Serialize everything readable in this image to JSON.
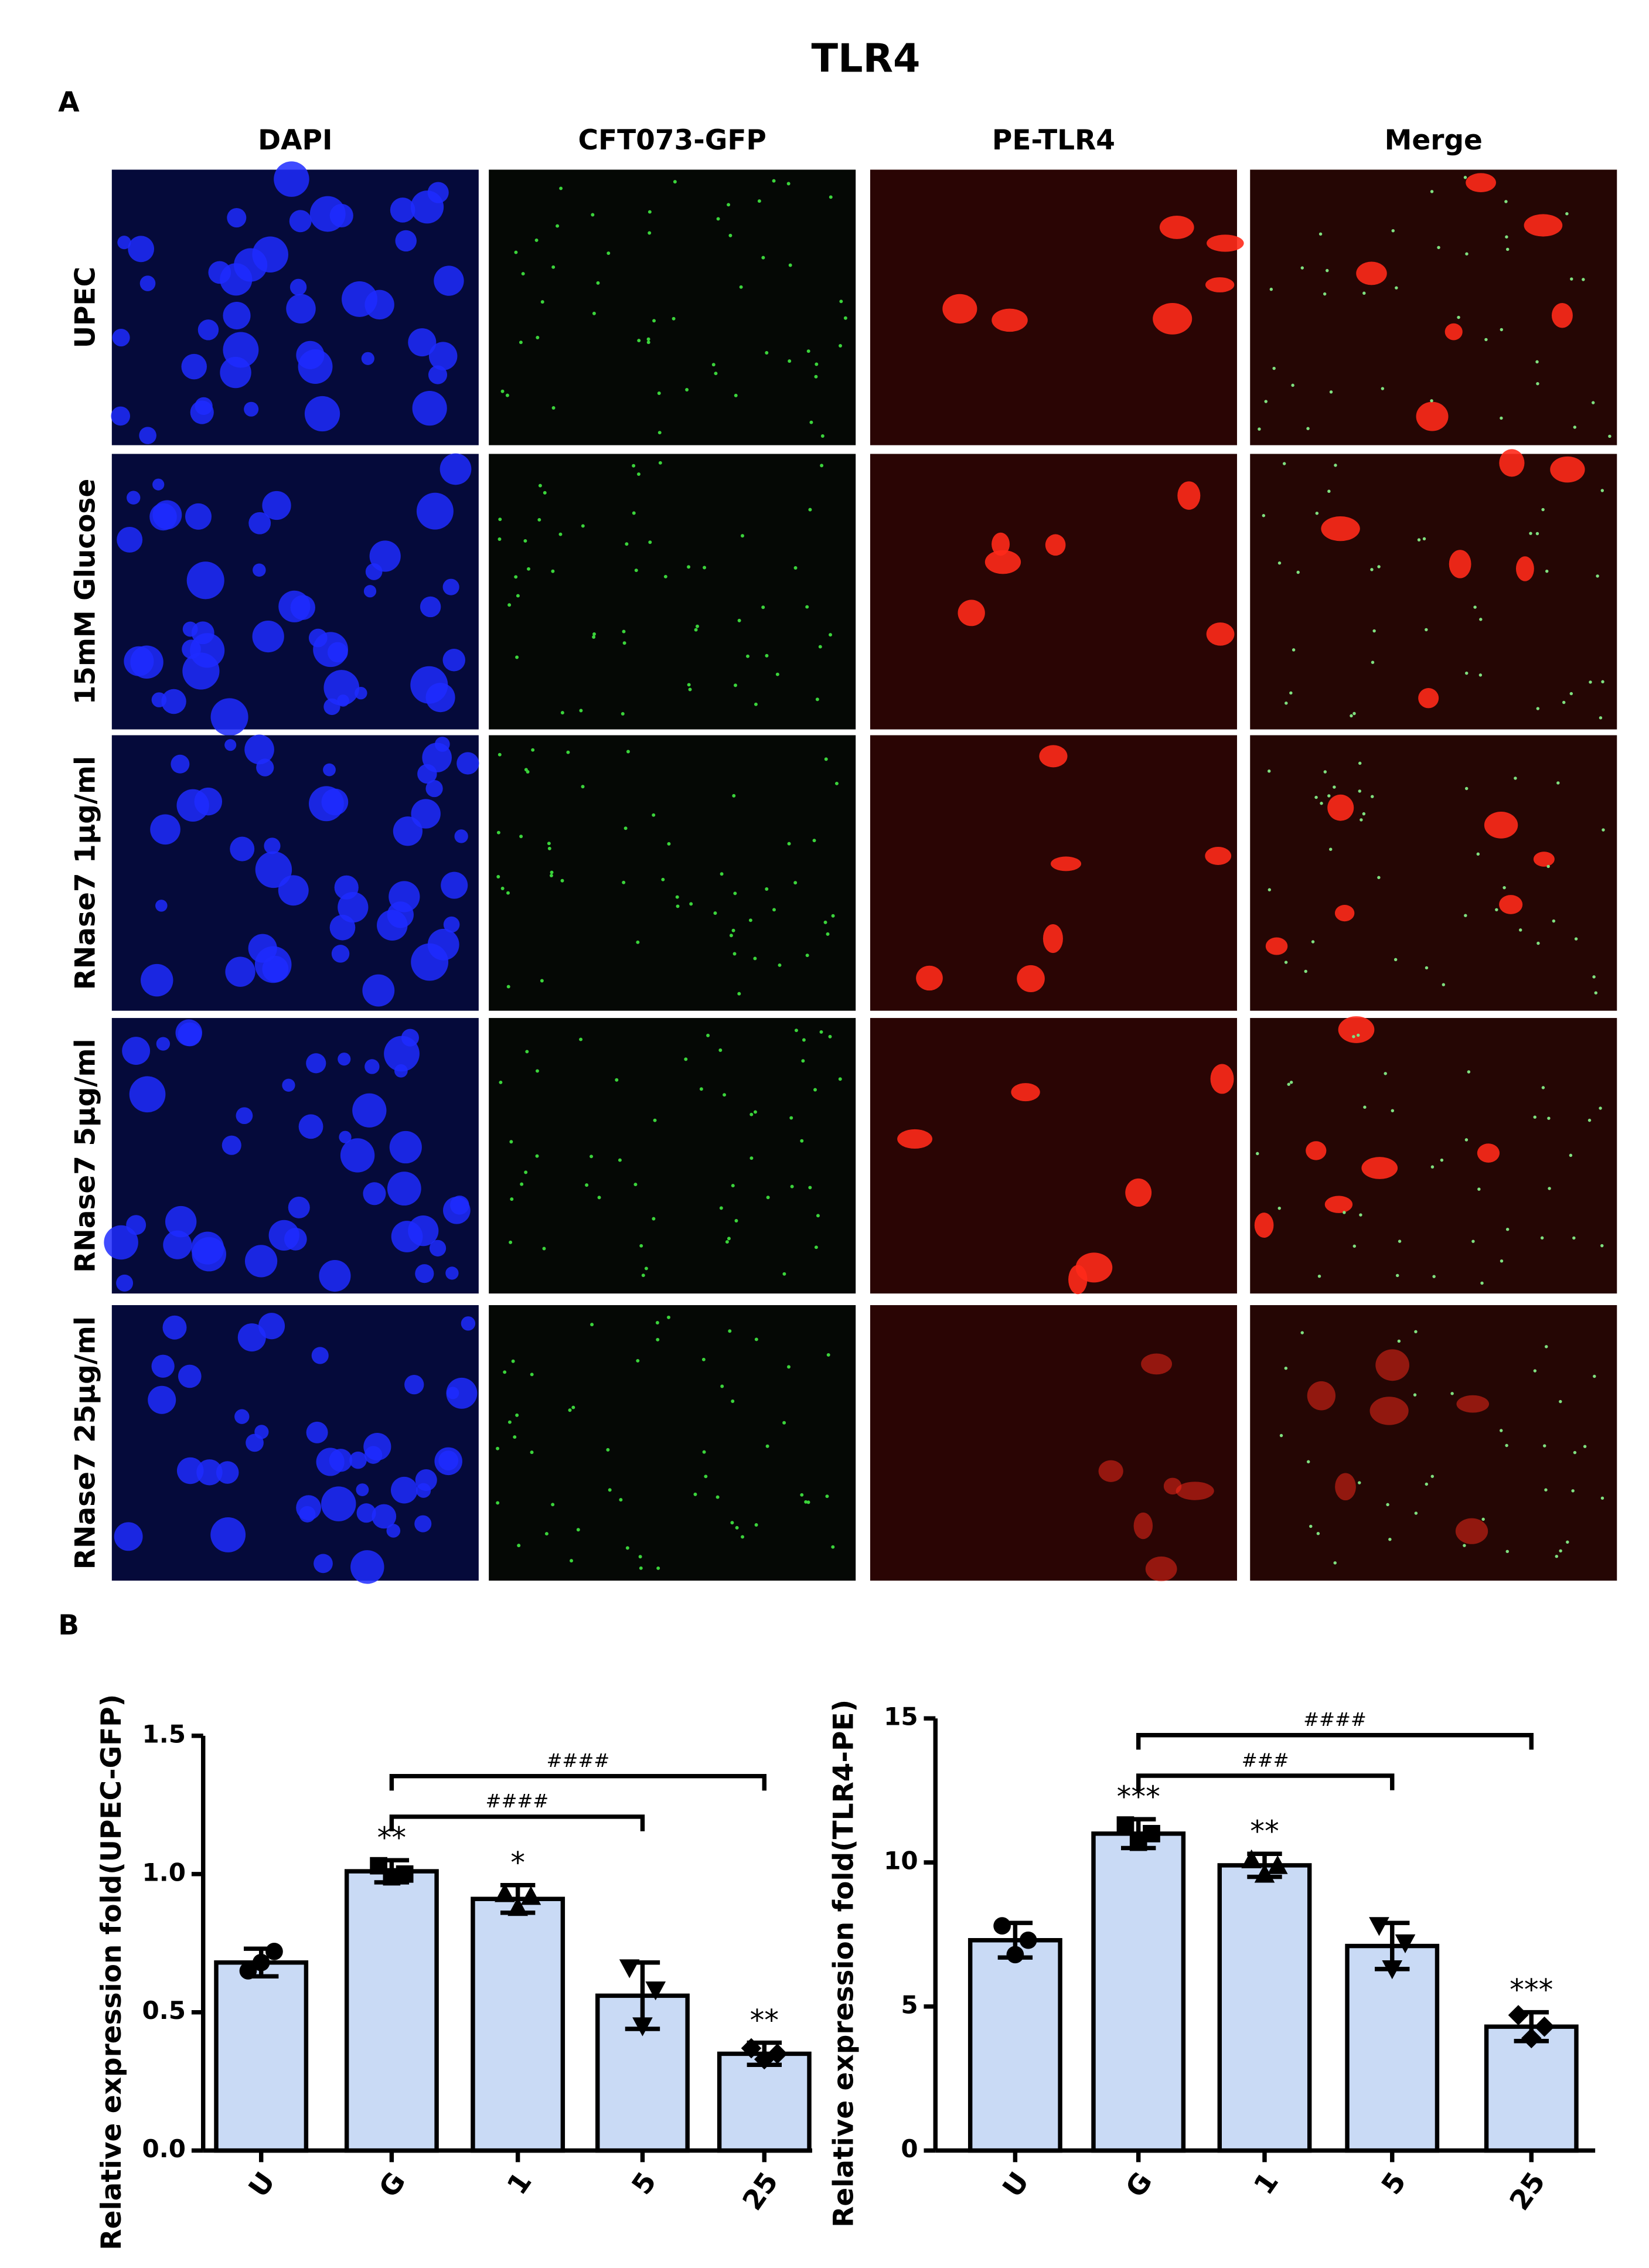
{
  "figure": {
    "title": "TLR4",
    "panel_a": "A",
    "panel_b": "B",
    "columns": [
      "DAPI",
      "CFT073-GFP",
      "PE-TLR4",
      "Merge"
    ],
    "rows": [
      "UPEC",
      "15mM Glucose",
      "RNase7 1μg/ml",
      "RNase7 5μg/ml",
      "RNase7 25μg/ml"
    ]
  },
  "chart_data": [
    {
      "type": "bar",
      "ylabel": "Relative expression fold(UPEC-GFP)",
      "categories": [
        "U",
        "G",
        "1",
        "5",
        "25"
      ],
      "values": [
        0.68,
        1.01,
        0.91,
        0.56,
        0.35
      ],
      "errors": [
        0.05,
        0.04,
        0.05,
        0.12,
        0.04
      ],
      "points": [
        [
          0.65,
          0.68,
          0.72
        ],
        [
          1.03,
          0.99,
          1.0
        ],
        [
          0.93,
          0.88,
          0.92
        ],
        [
          0.66,
          0.45,
          0.58
        ],
        [
          0.37,
          0.33,
          0.35
        ]
      ],
      "significance": [
        null,
        "**",
        "*",
        null,
        "**"
      ],
      "comparisons": [
        {
          "from": "G",
          "to": "5",
          "label": "####"
        },
        {
          "from": "G",
          "to": "25",
          "label": "####"
        }
      ],
      "color": "#c9daf5",
      "ylim": [
        0,
        1.5
      ],
      "yticks": [
        {
          "value": 0,
          "label": "0.0"
        },
        {
          "value": 0.5,
          "label": "0.5"
        },
        {
          "value": 1,
          "label": "1.0"
        },
        {
          "value": 1.5,
          "label": "1.5"
        }
      ]
    },
    {
      "type": "bar",
      "ylabel": "Relative expression fold(TLR4-PE)",
      "categories": [
        "U",
        "G",
        "1",
        "5",
        "25"
      ],
      "values": [
        7.3,
        11.0,
        9.9,
        7.1,
        4.3
      ],
      "errors": [
        0.6,
        0.5,
        0.4,
        0.8,
        0.5
      ],
      "points": [
        [
          7.8,
          6.8,
          7.3
        ],
        [
          11.3,
          10.7,
          11.0
        ],
        [
          10.1,
          9.6,
          9.9
        ],
        [
          7.8,
          6.3,
          7.2
        ],
        [
          4.7,
          3.9,
          4.3
        ]
      ],
      "significance": [
        null,
        "***",
        "**",
        null,
        "***"
      ],
      "comparisons": [
        {
          "from": "G",
          "to": "5",
          "label": "###"
        },
        {
          "from": "G",
          "to": "25",
          "label": "####"
        }
      ],
      "color": "#c9daf5",
      "ylim": [
        0,
        15
      ],
      "yticks": [
        0,
        5,
        10,
        15
      ]
    }
  ]
}
